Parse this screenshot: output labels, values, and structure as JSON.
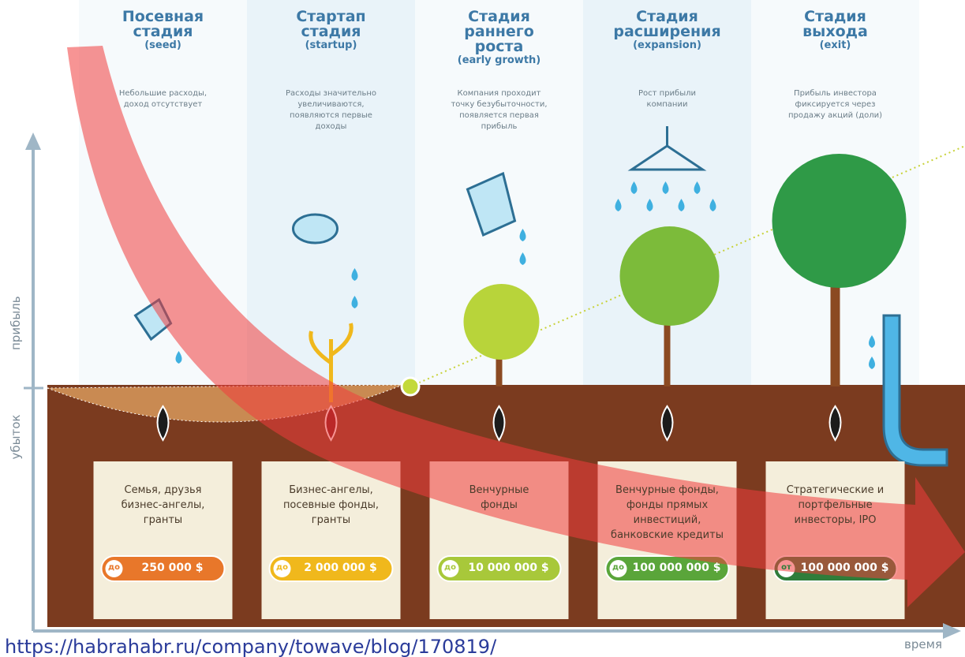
{
  "axes": {
    "y_positive": "прибыль",
    "y_negative": "убыток",
    "x": "время"
  },
  "stages": [
    {
      "title": "Посевная\nстадия",
      "subtitle": "(seed)",
      "description": "Небольшие расходы,\nдоход отсутствует",
      "investors": "Семья, друзья\nбизнес-ангелы,\nгранты",
      "badge": "до",
      "amount": "250 000 $"
    },
    {
      "title": "Стартап\nстадия",
      "subtitle": "(startup)",
      "description": "Расходы значительно\nувеличиваются,\nпоявляются первые\nдоходы",
      "investors": "Бизнес-ангелы,\nпосевные фонды,\nгранты",
      "badge": "до",
      "amount": "2 000 000 $"
    },
    {
      "title": "Стадия\nраннего\nроста",
      "subtitle": "(early growth)",
      "description": "Компания проходит\nточку безубыточности,\nпоявляется первая\nприбыль",
      "investors": "Венчурные\nфонды",
      "badge": "до",
      "amount": "10 000 000 $"
    },
    {
      "title": "Стадия\nрасширения",
      "subtitle": "(expansion)",
      "description": "Рост прибыли\nкомпании",
      "investors": "Венчурные фонды,\nфонды прямых\nинвестиций,\nбанковские кредиты",
      "badge": "до",
      "amount": "100 000 000 $"
    },
    {
      "title": "Стадия\nвыхода",
      "subtitle": "(exit)",
      "description": "Прибыль инвестора\nфиксируется через\nпродажу акций (доли)",
      "investors": "Стратегические и\nпортфельные\nинвесторы, IPO",
      "badge": "от",
      "amount": "100 000 000 $"
    }
  ],
  "source": "https://habrahabr.ru/company/towave/blog/170819/"
}
